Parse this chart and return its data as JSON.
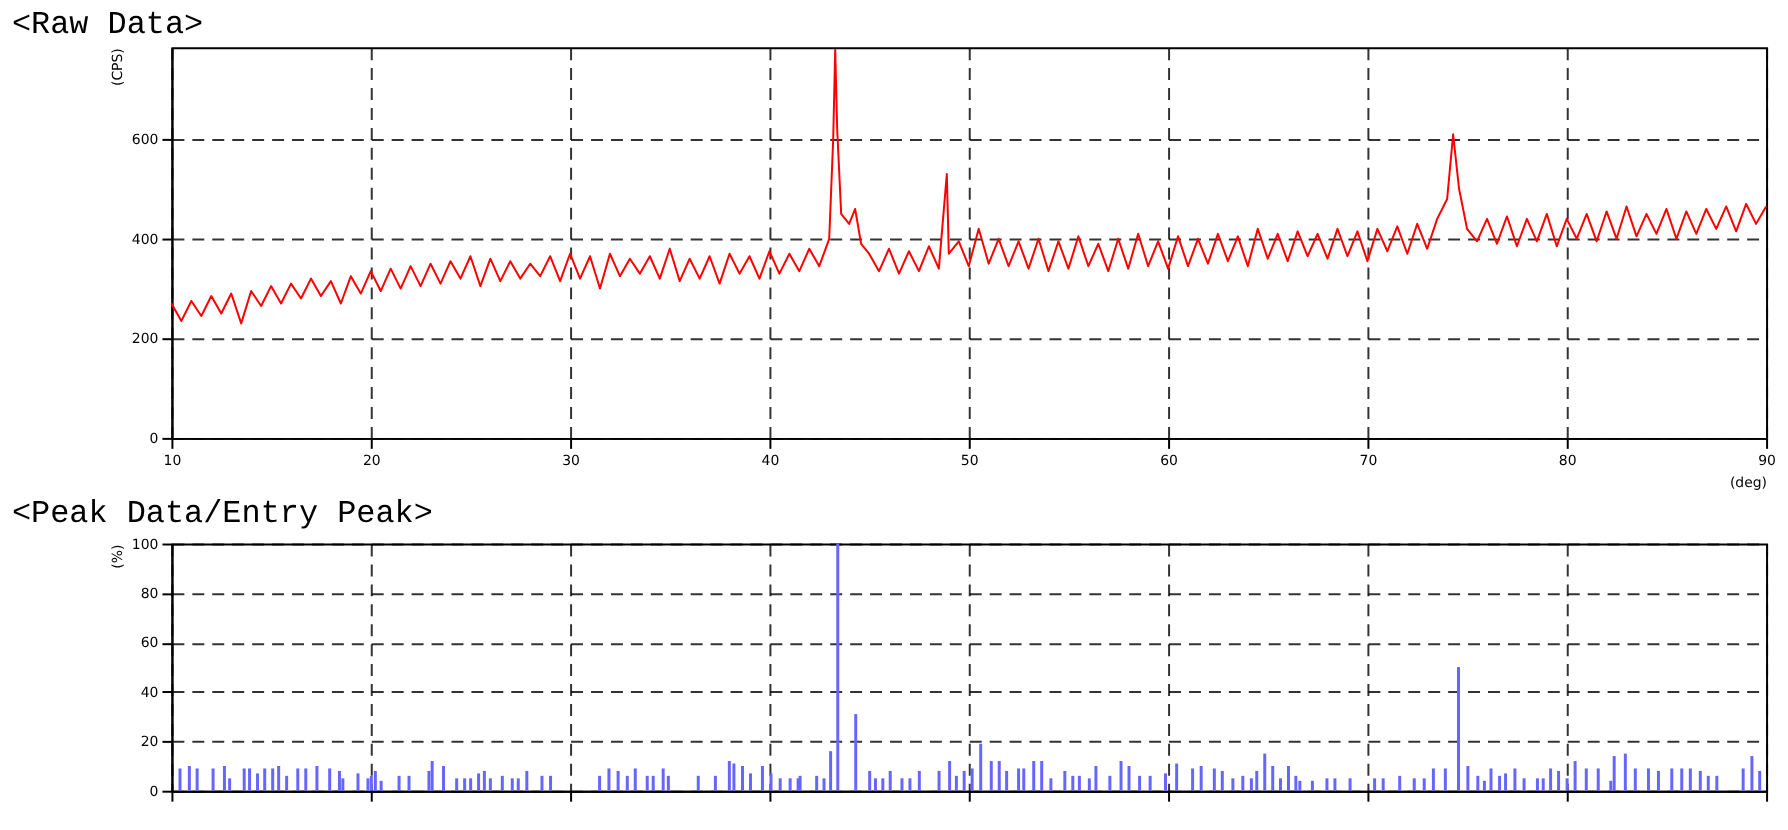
{
  "chart_data": [
    {
      "type": "line",
      "title": "<Raw Data>",
      "xlabel": "(deg)",
      "ylabel": "(CPS)",
      "xlim": [
        10,
        90
      ],
      "xticks": [
        10,
        20,
        30,
        40,
        50,
        60,
        70,
        80,
        90
      ],
      "ylim": [
        0,
        785
      ],
      "yticks": [
        0,
        200,
        400,
        600
      ],
      "grid": true,
      "line_style": "solid",
      "series": [
        {
          "color": "#ff0000",
          "x": [
            10,
            10.5,
            11,
            11.5,
            12,
            12.5,
            13,
            13.5,
            14,
            14.5,
            15,
            15.5,
            16,
            16.5,
            17,
            17.5,
            18,
            18.5,
            19,
            19.5,
            20,
            20.5,
            21,
            21.5,
            22,
            22.5,
            23,
            23.5,
            24,
            24.5,
            25,
            25.5,
            26,
            26.5,
            27,
            27.5,
            28,
            28.5,
            29,
            29.5,
            30,
            30.5,
            31,
            31.5,
            32,
            32.5,
            33,
            33.5,
            34,
            34.5,
            35,
            35.5,
            36,
            36.5,
            37,
            37.5,
            38,
            38.5,
            39,
            39.5,
            40,
            40.5,
            41,
            41.5,
            42,
            42.5,
            43,
            43.2,
            43.3,
            43.4,
            43.6,
            44,
            44.3,
            44.6,
            45,
            45.5,
            46,
            46.5,
            47,
            47.5,
            48,
            48.5,
            48.9,
            49,
            49.5,
            50,
            50.5,
            51,
            51.5,
            52,
            52.5,
            53,
            53.5,
            54,
            54.5,
            55,
            55.5,
            56,
            56.5,
            57,
            57.5,
            58,
            58.5,
            59,
            59.5,
            60,
            60.5,
            61,
            61.5,
            62,
            62.5,
            63,
            63.5,
            64,
            64.5,
            65,
            65.5,
            66,
            66.5,
            67,
            67.5,
            68,
            68.5,
            69,
            69.5,
            70,
            70.5,
            71,
            71.5,
            72,
            72.5,
            73,
            73.5,
            74,
            74.3,
            74.6,
            75,
            75.5,
            76,
            76.5,
            77,
            77.5,
            78,
            78.5,
            79,
            79.5,
            80,
            80.5,
            81,
            81.5,
            82,
            82.5,
            83,
            83.5,
            84,
            84.5,
            85,
            85.5,
            86,
            86.5,
            87,
            87.5,
            88,
            88.5,
            89,
            89.5,
            90
          ],
          "values": [
            270,
            235,
            275,
            245,
            285,
            250,
            290,
            230,
            295,
            265,
            305,
            270,
            310,
            280,
            320,
            285,
            315,
            270,
            325,
            290,
            335,
            295,
            340,
            300,
            345,
            305,
            350,
            310,
            355,
            320,
            365,
            305,
            360,
            315,
            355,
            320,
            350,
            325,
            365,
            315,
            370,
            320,
            365,
            300,
            370,
            325,
            360,
            330,
            365,
            320,
            380,
            315,
            360,
            320,
            365,
            310,
            370,
            330,
            365,
            320,
            375,
            330,
            370,
            335,
            380,
            345,
            400,
            600,
            780,
            620,
            450,
            430,
            460,
            390,
            370,
            335,
            380,
            330,
            375,
            335,
            385,
            340,
            530,
            370,
            395,
            345,
            420,
            350,
            400,
            345,
            395,
            340,
            400,
            335,
            395,
            340,
            405,
            345,
            390,
            335,
            400,
            340,
            410,
            345,
            395,
            340,
            405,
            345,
            400,
            350,
            410,
            355,
            405,
            345,
            420,
            360,
            410,
            355,
            415,
            365,
            410,
            360,
            420,
            365,
            415,
            355,
            420,
            375,
            425,
            370,
            430,
            380,
            440,
            480,
            610,
            500,
            420,
            395,
            440,
            390,
            445,
            385,
            440,
            395,
            450,
            385,
            440,
            400,
            450,
            395,
            455,
            400,
            465,
            405,
            450,
            410,
            460,
            400,
            455,
            410,
            460,
            420,
            465,
            415,
            470,
            430,
            465
          ]
        }
      ]
    },
    {
      "type": "bar",
      "title": "<Peak Data/Entry Peak>",
      "ylabel": "(%)",
      "xlim": [
        10,
        90
      ],
      "xticks": [
        10,
        20,
        30,
        40,
        50,
        60,
        70,
        80,
        90
      ],
      "ylim": [
        0,
        100
      ],
      "yticks": [
        0,
        20,
        40,
        60,
        80,
        100
      ],
      "grid": true,
      "tick_labels": "y",
      "series": [
        {
          "color": "#6666ff",
          "x": [
            10.43,
            10.9,
            11.29,
            12.09,
            12.66,
            12.92,
            13.65,
            13.92,
            14.32,
            14.68,
            15.08,
            15.38,
            15.78,
            16.34,
            16.74,
            17.3,
            17.94,
            18.43,
            18.6,
            19.36,
            19.86,
            20.03,
            20.23,
            20.52,
            21.42,
            21.92,
            22.92,
            23.08,
            23.65,
            24.31,
            24.71,
            25.01,
            25.41,
            25.7,
            26.0,
            26.6,
            27.1,
            27.4,
            27.83,
            28.59,
            29.02,
            31.48,
            31.95,
            32.41,
            32.87,
            33.27,
            33.87,
            34.17,
            34.67,
            34.93,
            36.43,
            37.29,
            37.99,
            38.22,
            38.65,
            39.05,
            39.65,
            40.08,
            40.54,
            41.04,
            41.44,
            41.54,
            42.37,
            42.74,
            43.07,
            43.43,
            44.33,
            45.03,
            45.32,
            45.69,
            46.06,
            46.65,
            47.05,
            47.52,
            48.51,
            49.04,
            49.38,
            49.77,
            50.17,
            50.6,
            51.13,
            51.53,
            51.9,
            52.5,
            52.76,
            53.26,
            53.66,
            54.12,
            54.82,
            55.22,
            55.55,
            56.05,
            56.38,
            57.08,
            57.64,
            58.04,
            58.57,
            59.1,
            59.87,
            60.43,
            61.23,
            61.66,
            62.32,
            62.72,
            63.25,
            63.75,
            64.18,
            64.45,
            64.85,
            65.25,
            65.64,
            66.04,
            66.41,
            66.61,
            67.24,
            67.97,
            68.37,
            69.13,
            70.36,
            70.79,
            71.62,
            72.35,
            72.85,
            73.31,
            73.91,
            74.57,
            75.04,
            75.54,
            75.87,
            76.2,
            76.63,
            76.93,
            77.4,
            77.86,
            78.53,
            78.82,
            79.19,
            79.59,
            80.02,
            80.42,
            80.98,
            81.58,
            82.21,
            82.38,
            82.94,
            83.44,
            84.1,
            84.6,
            85.27,
            85.77,
            86.2,
            86.7,
            87.1,
            87.53,
            88.85,
            89.29,
            89.68
          ],
          "values": [
            9,
            10,
            9,
            9,
            10,
            5,
            9,
            9,
            7,
            9,
            9,
            10,
            6,
            9,
            9,
            10,
            9,
            8,
            5,
            7,
            5,
            6,
            8,
            4,
            6,
            6,
            8,
            12,
            10,
            5,
            5,
            5,
            7,
            8,
            5,
            6,
            5,
            5,
            8,
            6,
            6,
            6,
            9,
            8,
            6,
            9,
            6,
            6,
            9,
            6,
            6,
            6,
            12,
            11,
            10,
            7,
            10,
            7,
            5,
            5,
            5,
            6,
            6,
            5,
            16,
            100,
            31,
            8,
            5,
            5,
            8,
            5,
            5,
            8,
            8,
            12,
            6,
            8,
            9,
            19,
            12,
            12,
            8,
            9,
            9,
            12,
            12,
            5,
            8,
            6,
            6,
            5,
            10,
            6,
            12,
            10,
            6,
            6,
            7,
            11,
            9,
            10,
            9,
            8,
            5,
            6,
            5,
            8,
            15,
            10,
            5,
            10,
            6,
            4,
            4,
            5,
            5,
            5,
            5,
            5,
            6,
            5,
            5,
            9,
            9,
            50,
            10,
            6,
            4,
            9,
            6,
            7,
            9,
            5,
            5,
            5,
            9,
            8,
            5,
            12,
            9,
            9,
            4,
            14,
            15,
            9,
            9,
            8,
            9,
            9,
            9,
            8,
            6,
            6,
            9,
            14,
            8
          ]
        }
      ]
    }
  ]
}
